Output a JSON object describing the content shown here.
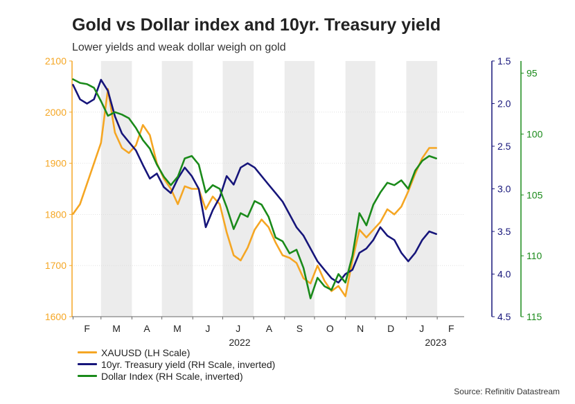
{
  "title": "Gold vs Dollar index and 10yr. Treasury yield",
  "subtitle": "Lower yields and weak dollar weigh on gold",
  "source": "Source: Refinitiv Datastream",
  "colors": {
    "gold": "#f5a623",
    "yield": "#16157a",
    "dollar": "#1a8a1a",
    "shade": "#ececec"
  },
  "chart_data": {
    "type": "line",
    "x_axis": {
      "month_labels": [
        "F",
        "M",
        "A",
        "M",
        "J",
        "J",
        "A",
        "S",
        "O",
        "N",
        "D",
        "J",
        "F"
      ],
      "year_labels": [
        "2022",
        "2023"
      ],
      "start": "2022-01-31",
      "end": "2023-02-28"
    },
    "axes": {
      "left": {
        "name": "XAUUSD",
        "ylim": [
          1600,
          2100
        ],
        "ticks": [
          "2100",
          "2000",
          "1900",
          "1800",
          "1700",
          "1600"
        ],
        "color": "#f5a623"
      },
      "right_inner": {
        "name": "10yr yield",
        "ylim": [
          1.5,
          4.5
        ],
        "inverted": true,
        "ticks": [
          "1.5",
          "2.0",
          "2.5",
          "3.0",
          "3.5",
          "4.0",
          "4.5"
        ],
        "color": "#16157a"
      },
      "right_outer": {
        "name": "Dollar Index",
        "ylim": [
          94,
          115
        ],
        "inverted": true,
        "ticks": [
          "95",
          "100",
          "105",
          "110",
          "115"
        ],
        "color": "#1a8a1a"
      }
    },
    "series": [
      {
        "name": "XAUUSD (LH Scale)",
        "axis": "left",
        "x": [
          "2022-02-01",
          "2022-02-08",
          "2022-02-15",
          "2022-02-22",
          "2022-03-01",
          "2022-03-08",
          "2022-03-15",
          "2022-03-22",
          "2022-03-29",
          "2022-04-05",
          "2022-04-12",
          "2022-04-19",
          "2022-04-26",
          "2022-05-03",
          "2022-05-10",
          "2022-05-17",
          "2022-05-24",
          "2022-05-31",
          "2022-06-07",
          "2022-06-14",
          "2022-06-21",
          "2022-06-28",
          "2022-07-05",
          "2022-07-12",
          "2022-07-19",
          "2022-07-26",
          "2022-08-02",
          "2022-08-09",
          "2022-08-16",
          "2022-08-23",
          "2022-08-30",
          "2022-09-06",
          "2022-09-13",
          "2022-09-20",
          "2022-09-27",
          "2022-10-04",
          "2022-10-11",
          "2022-10-18",
          "2022-10-25",
          "2022-11-01",
          "2022-11-08",
          "2022-11-15",
          "2022-11-22",
          "2022-11-29",
          "2022-12-06",
          "2022-12-13",
          "2022-12-20",
          "2022-12-27",
          "2023-01-03",
          "2023-01-10",
          "2023-01-17",
          "2023-01-24",
          "2023-01-31"
        ],
        "values": [
          1801,
          1820,
          1860,
          1900,
          1940,
          2045,
          1960,
          1930,
          1920,
          1935,
          1975,
          1955,
          1900,
          1870,
          1850,
          1820,
          1855,
          1850,
          1850,
          1810,
          1835,
          1820,
          1765,
          1720,
          1710,
          1735,
          1770,
          1790,
          1775,
          1745,
          1720,
          1715,
          1705,
          1675,
          1665,
          1700,
          1670,
          1650,
          1660,
          1640,
          1710,
          1770,
          1755,
          1770,
          1785,
          1810,
          1800,
          1815,
          1845,
          1880,
          1910,
          1930,
          1930
        ]
      },
      {
        "name": "10yr. Treasury yield (RH Scale, inverted)",
        "axis": "right_inner",
        "x": [
          "2022-02-01",
          "2022-02-08",
          "2022-02-15",
          "2022-02-22",
          "2022-03-01",
          "2022-03-08",
          "2022-03-15",
          "2022-03-22",
          "2022-03-29",
          "2022-04-05",
          "2022-04-12",
          "2022-04-19",
          "2022-04-26",
          "2022-05-03",
          "2022-05-10",
          "2022-05-17",
          "2022-05-24",
          "2022-05-31",
          "2022-06-07",
          "2022-06-14",
          "2022-06-21",
          "2022-06-28",
          "2022-07-05",
          "2022-07-12",
          "2022-07-19",
          "2022-07-26",
          "2022-08-02",
          "2022-08-09",
          "2022-08-16",
          "2022-08-23",
          "2022-08-30",
          "2022-09-06",
          "2022-09-13",
          "2022-09-20",
          "2022-09-27",
          "2022-10-04",
          "2022-10-11",
          "2022-10-18",
          "2022-10-25",
          "2022-11-01",
          "2022-11-08",
          "2022-11-15",
          "2022-11-22",
          "2022-11-29",
          "2022-12-06",
          "2022-12-13",
          "2022-12-20",
          "2022-12-27",
          "2023-01-03",
          "2023-01-10",
          "2023-01-17",
          "2023-01-24",
          "2023-01-31"
        ],
        "values": [
          1.78,
          1.95,
          2.0,
          1.95,
          1.72,
          1.85,
          2.15,
          2.35,
          2.45,
          2.55,
          2.72,
          2.88,
          2.82,
          2.98,
          3.05,
          2.88,
          2.75,
          2.85,
          3.0,
          3.45,
          3.25,
          3.1,
          2.85,
          2.95,
          2.75,
          2.7,
          2.75,
          2.85,
          2.95,
          3.05,
          3.15,
          3.3,
          3.45,
          3.55,
          3.7,
          3.85,
          3.95,
          4.05,
          4.1,
          4.0,
          3.95,
          3.75,
          3.7,
          3.6,
          3.45,
          3.55,
          3.6,
          3.75,
          3.85,
          3.75,
          3.6,
          3.5,
          3.53
        ]
      },
      {
        "name": "Dollar Index (RH Scale, inverted)",
        "axis": "right_outer",
        "x": [
          "2022-02-01",
          "2022-02-08",
          "2022-02-15",
          "2022-02-22",
          "2022-03-01",
          "2022-03-08",
          "2022-03-15",
          "2022-03-22",
          "2022-03-29",
          "2022-04-05",
          "2022-04-12",
          "2022-04-19",
          "2022-04-26",
          "2022-05-03",
          "2022-05-10",
          "2022-05-17",
          "2022-05-24",
          "2022-05-31",
          "2022-06-07",
          "2022-06-14",
          "2022-06-21",
          "2022-06-28",
          "2022-07-05",
          "2022-07-12",
          "2022-07-19",
          "2022-07-26",
          "2022-08-02",
          "2022-08-09",
          "2022-08-16",
          "2022-08-23",
          "2022-08-30",
          "2022-09-06",
          "2022-09-13",
          "2022-09-20",
          "2022-09-27",
          "2022-10-04",
          "2022-10-11",
          "2022-10-18",
          "2022-10-25",
          "2022-11-01",
          "2022-11-08",
          "2022-11-15",
          "2022-11-22",
          "2022-11-29",
          "2022-12-06",
          "2022-12-13",
          "2022-12-20",
          "2022-12-27",
          "2023-01-03",
          "2023-01-10",
          "2023-01-17",
          "2023-01-24",
          "2023-01-31"
        ],
        "values": [
          95.5,
          95.8,
          95.9,
          96.2,
          97.3,
          98.5,
          98.2,
          98.4,
          98.7,
          99.5,
          100.5,
          101.2,
          102.5,
          103.5,
          104.2,
          103.5,
          102.0,
          101.8,
          102.5,
          104.8,
          104.2,
          104.5,
          106.0,
          107.8,
          106.5,
          106.8,
          105.5,
          105.8,
          106.8,
          108.5,
          108.8,
          109.8,
          109.5,
          111.0,
          113.5,
          111.8,
          112.5,
          112.8,
          111.5,
          112.2,
          110.0,
          106.5,
          107.5,
          105.8,
          104.8,
          104.0,
          104.2,
          103.8,
          104.5,
          103.0,
          102.2,
          101.8,
          102.0
        ]
      }
    ],
    "shaded_months": [
      "2022-03",
      "2022-05",
      "2022-07",
      "2022-09",
      "2022-11",
      "2023-01"
    ],
    "grid": true,
    "legend": "bottom-left"
  }
}
